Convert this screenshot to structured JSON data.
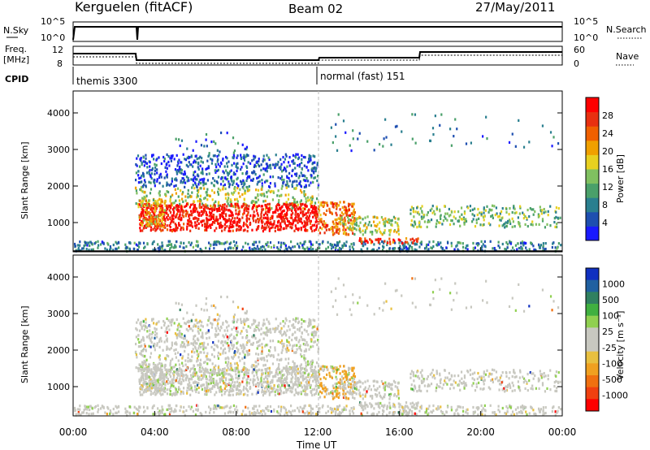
{
  "header": {
    "title": "Kerguelen (fitACF)",
    "beam": "Beam 02",
    "date": "27/May/2011"
  },
  "nsky_panel": {
    "left_label": "N.Sky",
    "left_ticks": [
      "10^5",
      "10^0"
    ],
    "right_label": "N.Search",
    "right_ticks": [
      "10^5",
      "10^0"
    ]
  },
  "freq_panel": {
    "left_label_line1": "Freq.",
    "left_label_line2": "[MHz]",
    "left_ticks": [
      "12",
      "8"
    ],
    "right_label": "Nave",
    "right_ticks": [
      "60",
      "0"
    ]
  },
  "cpid": {
    "label": "CPID",
    "modes": [
      "themis 3300",
      "normal (fast) 151"
    ]
  },
  "chart_data": [
    {
      "type": "heatmap",
      "name": "power",
      "ylabel": "Slant Range [km]",
      "yticks": [
        "1000",
        "2000",
        "3000",
        "4000"
      ],
      "ylim": [
        200,
        4600
      ],
      "xlim_hours": [
        0,
        24
      ],
      "colorbar_label": "Power [dB]",
      "colorbar_ticks": [
        "4",
        "8",
        "12",
        "16",
        "20",
        "24",
        "28"
      ],
      "colorbar_colors": [
        "#1a1aff",
        "#1e4fb0",
        "#2a7f8f",
        "#4aa06a",
        "#80c060",
        "#e8d020",
        "#f0a000",
        "#f06000",
        "#e83010",
        "#ff0000"
      ]
    },
    {
      "type": "heatmap",
      "name": "velocity",
      "ylabel": "Slant Range [km]",
      "yticks": [
        "1000",
        "2000",
        "3000",
        "4000"
      ],
      "ylim": [
        200,
        4600
      ],
      "xlim_hours": [
        0,
        24
      ],
      "colorbar_label": "Velocity [m s⁻¹]",
      "colorbar_ticks": [
        "1000",
        "500",
        "100",
        "25",
        "-25",
        "-100",
        "-500",
        "-1000"
      ],
      "colorbar_colors": [
        "#1030c0",
        "#2060a0",
        "#308060",
        "#40b040",
        "#90d050",
        "#c8c8c0",
        "#c8c8c0",
        "#e8c040",
        "#f0a020",
        "#f07010",
        "#f04010",
        "#ff0000"
      ]
    }
  ],
  "xaxis": {
    "label": "Time UT",
    "ticks": [
      "00:00",
      "04:00",
      "08:00",
      "12:00",
      "16:00",
      "20:00",
      "00:00"
    ]
  }
}
